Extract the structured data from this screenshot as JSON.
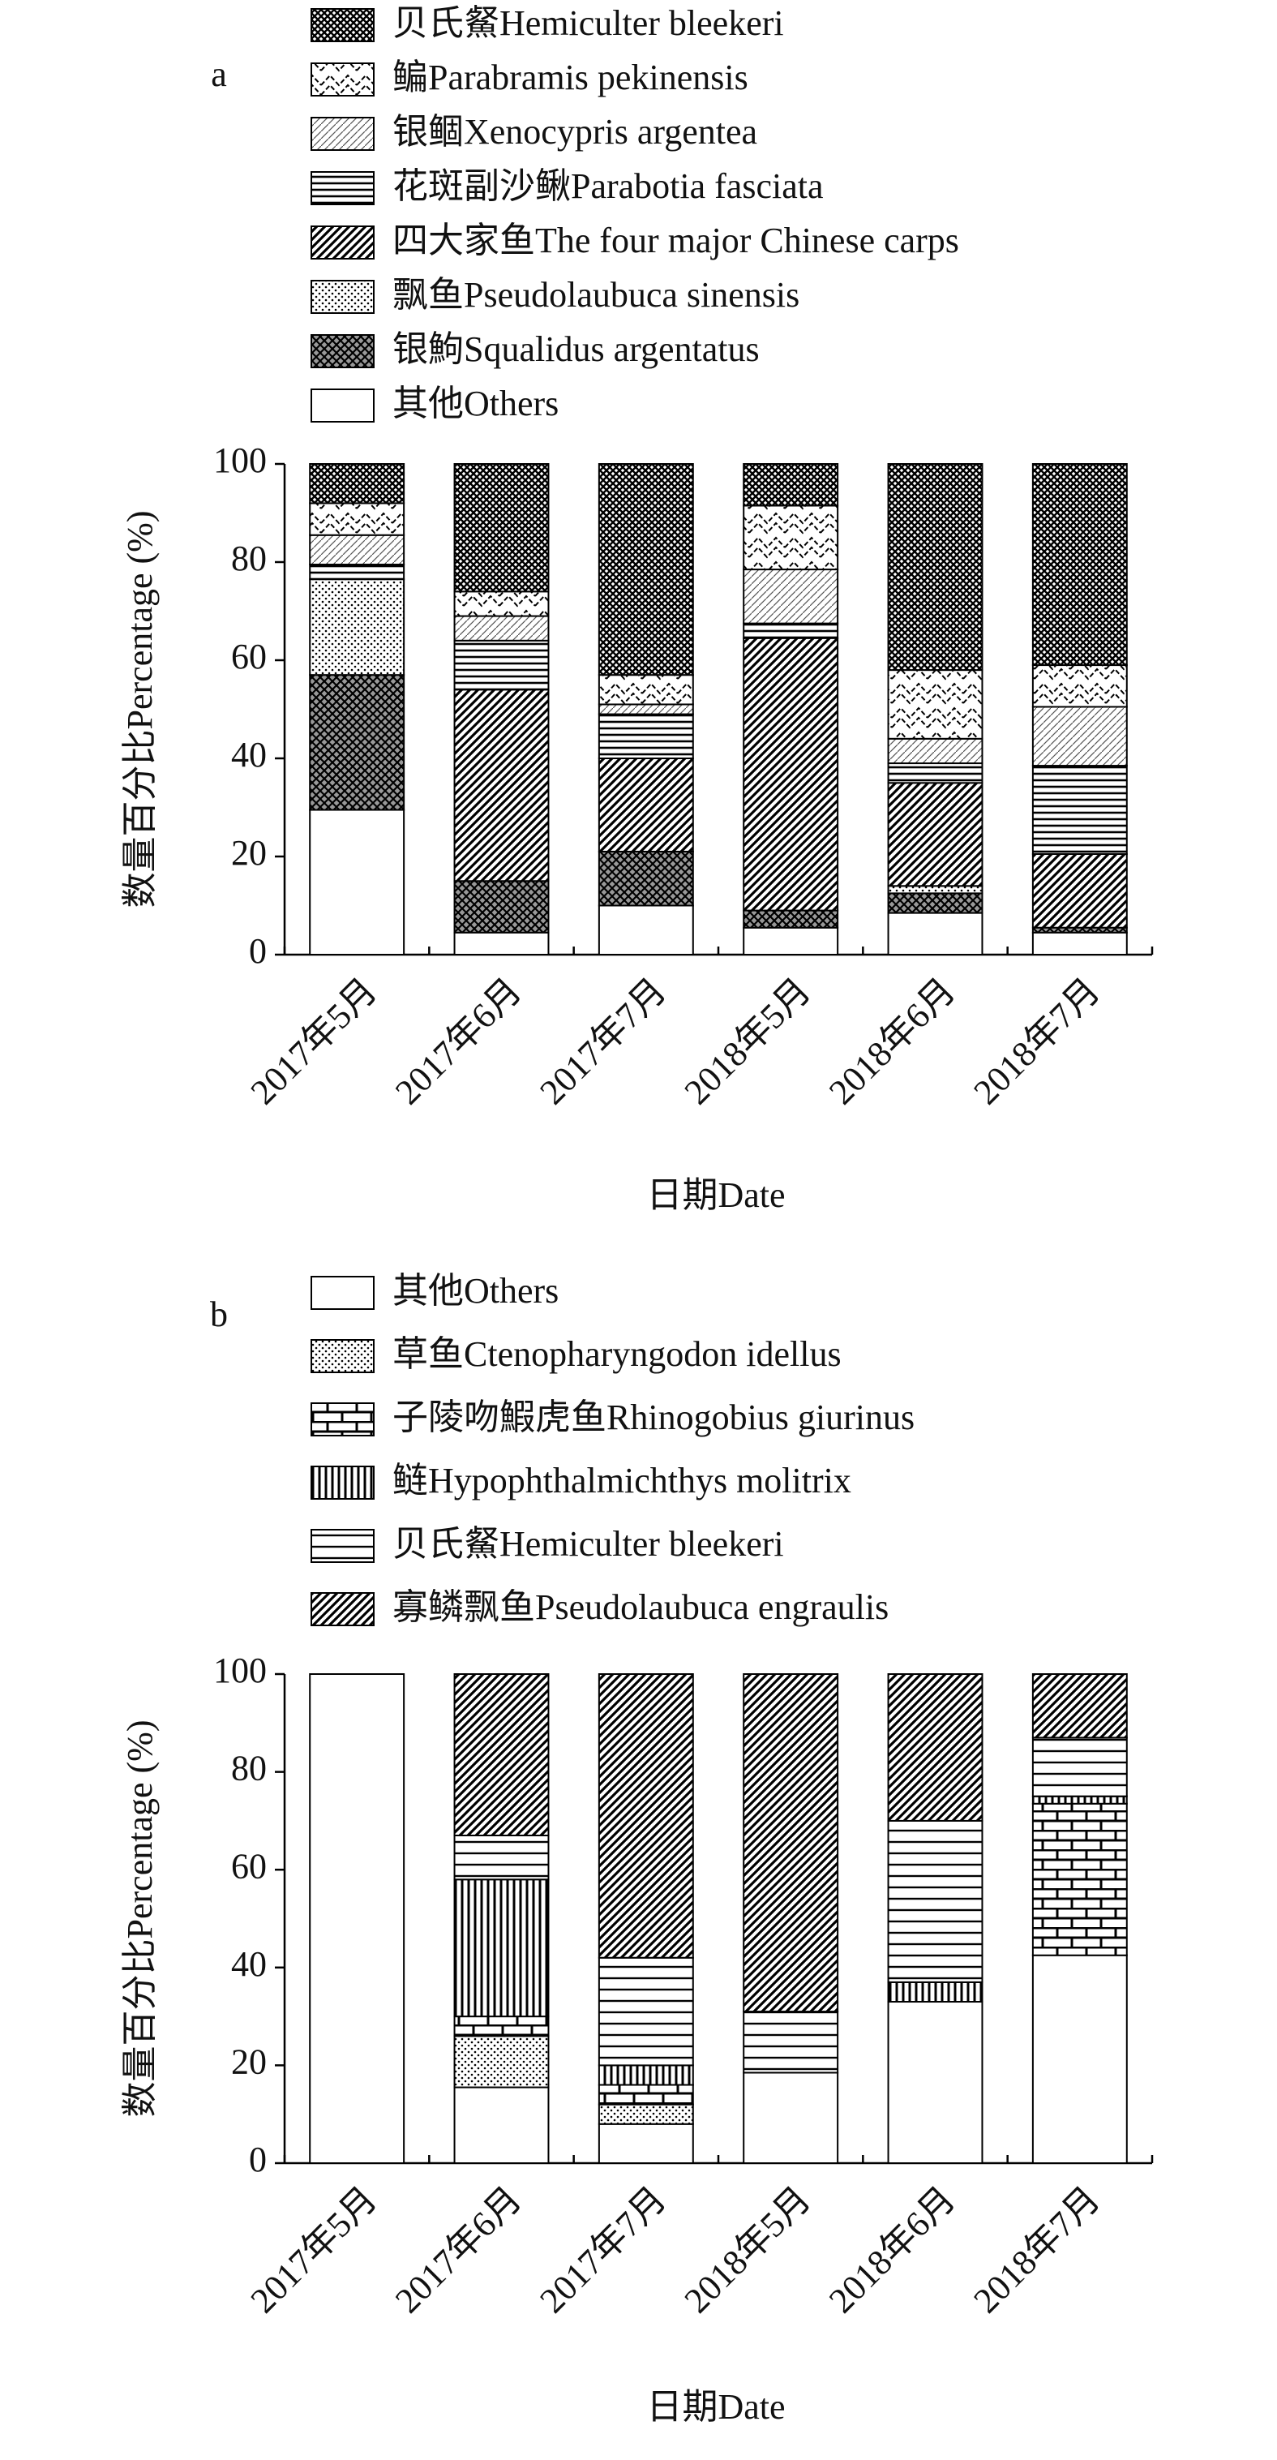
{
  "chart_data": [
    {
      "type": "bar",
      "stacked": true,
      "stack_order": "reverse",
      "panel": "a",
      "categories": [
        "2017年5月",
        "2017年6月",
        "2017年7月",
        "2018年5月",
        "2018年6月",
        "2018年7月"
      ],
      "x_label": "日期Date",
      "y_label": "数量百分比Percentage (%)",
      "ylim": [
        0,
        100
      ],
      "yticks": [
        0,
        20,
        40,
        60,
        80,
        100
      ],
      "series": [
        {
          "name": "贝氏䱗Hemiculter bleekeri",
          "pattern": "dense",
          "values": [
            8,
            26,
            43,
            8.5,
            42,
            41
          ]
        },
        {
          "name": "鳊Parabramis pekinensis",
          "pattern": "zigzag",
          "values": [
            6.5,
            5,
            6,
            13,
            14,
            8.5
          ]
        },
        {
          "name": "银鲴Xenocypris argentea",
          "pattern": "light-diagonal",
          "values": [
            6,
            5,
            2,
            11,
            5,
            12
          ]
        },
        {
          "name": "花斑副沙鳅Parabotia fasciata",
          "pattern": "horizontal",
          "values": [
            3,
            10,
            9,
            3,
            4,
            18
          ]
        },
        {
          "name": "四大家鱼The four major Chinese carps",
          "pattern": "diagonal",
          "values": [
            0,
            39,
            19,
            55.5,
            21,
            15
          ]
        },
        {
          "name": "飘鱼Pseudolaubuca sinensis",
          "pattern": "dots",
          "values": [
            19.5,
            0,
            0,
            0,
            1.5,
            0
          ]
        },
        {
          "name": "银鮈Squalidus argentatus",
          "pattern": "crosshatch",
          "values": [
            27.5,
            10.5,
            11,
            3.5,
            4,
            1
          ]
        },
        {
          "name": "其他Others",
          "pattern": "blank",
          "values": [
            29.5,
            4.5,
            10,
            5.5,
            8.5,
            4.5
          ]
        }
      ]
    },
    {
      "type": "bar",
      "stacked": true,
      "panel": "b",
      "categories": [
        "2017年5月",
        "2017年6月",
        "2017年7月",
        "2018年5月",
        "2018年6月",
        "2018年7月"
      ],
      "x_label": "日期Date",
      "y_label": "数量百分比Percentage (%)",
      "ylim": [
        0,
        100
      ],
      "yticks": [
        0,
        20,
        40,
        60,
        80,
        100
      ],
      "series": [
        {
          "name": "其他Others",
          "pattern": "blank",
          "values": [
            100,
            15.5,
            8,
            18.5,
            33,
            42.5
          ]
        },
        {
          "name": "草鱼Ctenopharyngodon idellus",
          "pattern": "dots",
          "values": [
            0,
            10.5,
            4,
            0,
            0,
            0
          ]
        },
        {
          "name": "子陵吻鰕虎鱼Rhinogobius giurinus",
          "pattern": "brick",
          "values": [
            0,
            4,
            4,
            0,
            0,
            31
          ]
        },
        {
          "name": "鲢Hypophthalmichthys molitrix",
          "pattern": "vertical",
          "values": [
            0,
            28,
            4,
            0,
            4,
            1.5
          ]
        },
        {
          "name": "贝氏䱗Hemiculter bleekeri",
          "pattern": "horizontal-wide",
          "values": [
            0,
            9,
            22,
            12.5,
            33,
            12
          ]
        },
        {
          "name": "寡鳞飘鱼Pseudolaubuca engraulis",
          "pattern": "diagonal",
          "values": [
            0,
            33,
            58,
            69,
            30,
            13
          ]
        }
      ]
    }
  ]
}
